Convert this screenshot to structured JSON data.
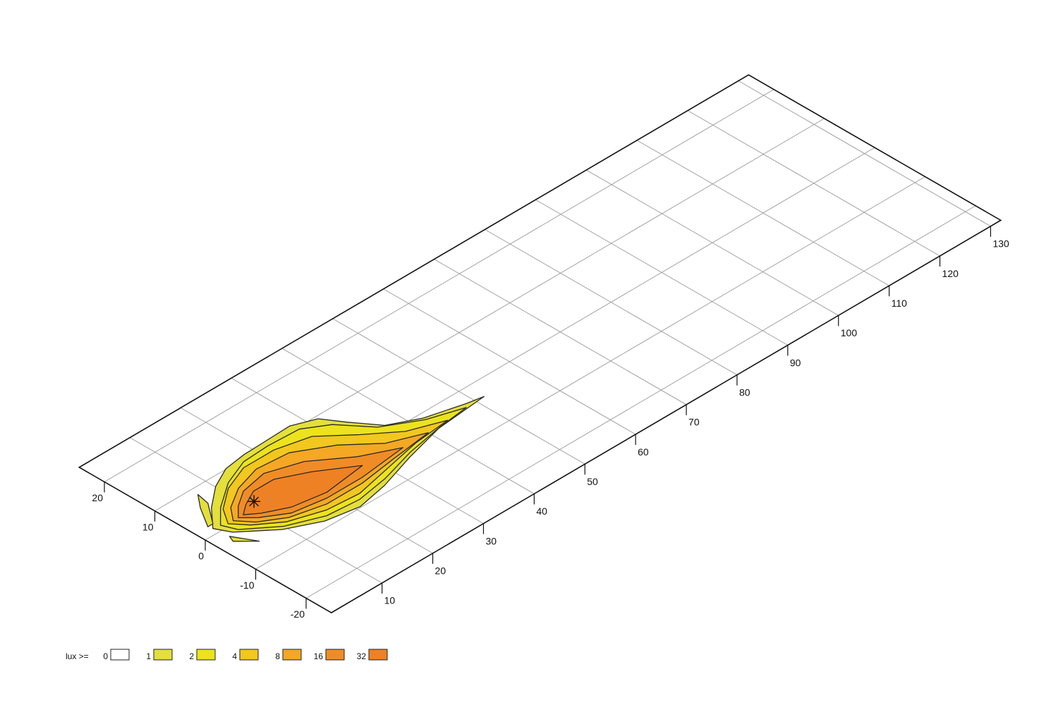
{
  "chart_data": {
    "type": "isolux",
    "xlim": [
      0,
      132
    ],
    "ylim": [
      -25,
      25
    ],
    "xticks": [
      10,
      20,
      30,
      40,
      50,
      60,
      70,
      80,
      90,
      100,
      110,
      120,
      130
    ],
    "yticks": [
      -20,
      -10,
      0,
      10,
      20
    ],
    "grid": true,
    "legend": {
      "title": "lux >=",
      "levels": [
        {
          "value": 0,
          "color": "#ffffff"
        },
        {
          "value": 1,
          "color": "#e3df3b"
        },
        {
          "value": 2,
          "color": "#ece31c"
        },
        {
          "value": 4,
          "color": "#f2c71e"
        },
        {
          "value": 8,
          "color": "#f4a824"
        },
        {
          "value": 16,
          "color": "#f08c26"
        },
        {
          "value": 32,
          "color": "#ee8123"
        }
      ]
    },
    "contours": [
      {
        "level": 1,
        "x": [
          51.6,
          48.6,
          42.0,
          37.0,
          33.8,
          31.6,
          27.6,
          21.8,
          18.3,
          14.1,
          10.1,
          6.1,
          2.7,
          4.0,
          9.3,
          14.9,
          20.8,
          26.8,
          34.1,
          41.7,
          49.4
        ],
        "y": [
          -3.4,
          -2.8,
          -1.0,
          1.6,
          6.0,
          9.4,
          11.0,
          10.8,
          10.7,
          10.1,
          8.1,
          4.9,
          1.2,
          -1.4,
          -5.9,
          -8.7,
          -9.8,
          -8.6,
          -6.3,
          -4.3,
          -3.6
        ]
      },
      {
        "level": 1,
        "x": [
          7.0,
          6.5,
          3.5,
          2.5,
          5.0
        ],
        "y": [
          8.5,
          6.0,
          2.0,
          2.0,
          6.0
        ]
      },
      {
        "level": 1,
        "x": [
          3.0,
          5.1,
          2.5
        ],
        "y": [
          -1.8,
          -5.6,
          -3.0
        ]
      },
      {
        "level": 2,
        "x": [
          48,
          42,
          36,
          32,
          28,
          22,
          17,
          12,
          7,
          4,
          5,
          10,
          16,
          22,
          28,
          35,
          42
        ],
        "y": [
          -3.5,
          -1.5,
          2,
          7,
          9.5,
          9.8,
          9.5,
          7.5,
          4,
          1,
          -1.5,
          -5.5,
          -8,
          -8.5,
          -7.5,
          -5.5,
          -4.2
        ]
      },
      {
        "level": 4,
        "x": [
          44,
          38,
          33,
          28,
          22,
          16,
          11,
          7,
          5,
          7,
          11,
          17,
          23,
          30,
          37
        ],
        "y": [
          -3.8,
          -1.5,
          2.5,
          7,
          8.5,
          8.5,
          6.5,
          3.5,
          0.5,
          -2,
          -5,
          -7,
          -7.5,
          -6,
          -4.5
        ]
      },
      {
        "level": 8,
        "x": [
          40,
          34,
          29,
          23,
          17,
          12,
          8,
          6,
          8,
          12,
          18,
          25,
          32
        ],
        "y": [
          -4,
          -1.5,
          3,
          6.5,
          7,
          5.5,
          3,
          0.5,
          -2,
          -4.5,
          -6,
          -6,
          -5
        ]
      },
      {
        "level": 16,
        "x": [
          35,
          29,
          23,
          17,
          12,
          9,
          7,
          9,
          13,
          19,
          26
        ],
        "y": [
          -4,
          -1,
          3.5,
          5.5,
          4.5,
          2.5,
          0.5,
          -1.5,
          -4,
          -5,
          -5
        ]
      },
      {
        "level": 32,
        "x": [
          28,
          22,
          17,
          13,
          10,
          8,
          10,
          14,
          20
        ],
        "y": [
          -3,
          1,
          3.5,
          3.5,
          2,
          0.5,
          -1,
          -3,
          -4
        ]
      }
    ],
    "luminaire": {
      "x": 11.3,
      "y": 1.7
    }
  }
}
